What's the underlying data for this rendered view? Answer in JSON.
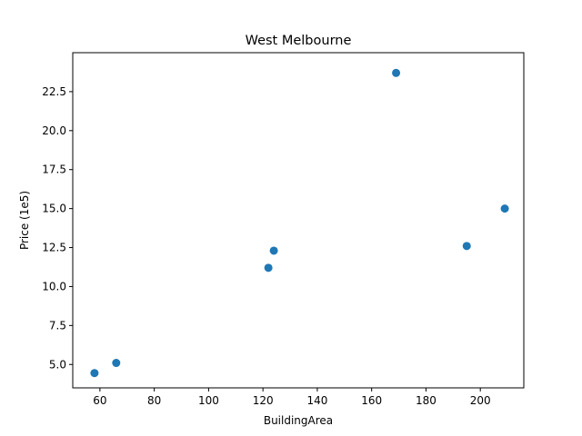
{
  "chart_data": {
    "type": "scatter",
    "title": "West Melbourne",
    "xlabel": "BuildingArea",
    "ylabel": "Price (1e5)",
    "xlim": [
      50,
      216
    ],
    "ylim": [
      3.5,
      25.0
    ],
    "xticks": [
      60,
      80,
      100,
      120,
      140,
      160,
      180,
      200
    ],
    "yticks": [
      5.0,
      7.5,
      10.0,
      12.5,
      15.0,
      17.5,
      20.0,
      22.5
    ],
    "xtick_labels": [
      "60",
      "80",
      "100",
      "120",
      "140",
      "160",
      "180",
      "200"
    ],
    "ytick_labels": [
      "5.0",
      "7.5",
      "10.0",
      "12.5",
      "15.0",
      "17.5",
      "20.0",
      "22.5"
    ],
    "grid": false,
    "marker_color": "#1f77b4",
    "points": [
      {
        "x": 58,
        "y": 4.45
      },
      {
        "x": 66,
        "y": 5.1
      },
      {
        "x": 122,
        "y": 11.2
      },
      {
        "x": 124,
        "y": 12.3
      },
      {
        "x": 169,
        "y": 23.7
      },
      {
        "x": 195,
        "y": 12.6
      },
      {
        "x": 209,
        "y": 15.0
      }
    ]
  }
}
